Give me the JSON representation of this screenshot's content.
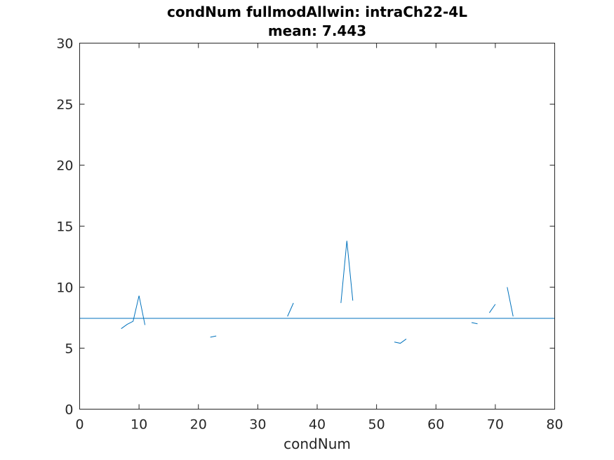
{
  "chart_data": {
    "type": "line",
    "title": "condNum fullmodAllwin: intraCh22-4L",
    "subtitle": "mean: 7.443",
    "xlabel": "condNum",
    "ylabel": "",
    "xlim": [
      0,
      80
    ],
    "ylim": [
      0,
      30
    ],
    "xticks": [
      0,
      10,
      20,
      30,
      40,
      50,
      60,
      70,
      80
    ],
    "yticks": [
      0,
      5,
      10,
      15,
      20,
      25,
      30
    ],
    "grid": false,
    "series_color": "#0072BD",
    "limit_line_color": "#A2142F",
    "mean_value": 7.443,
    "limit_value": 30,
    "segments": [
      {
        "x": [
          7,
          8,
          9,
          10,
          11
        ],
        "y": [
          6.6,
          6.95,
          7.2,
          9.3,
          6.9
        ]
      },
      {
        "x": [
          22,
          23
        ],
        "y": [
          5.9,
          6.0
        ]
      },
      {
        "x": [
          35,
          36
        ],
        "y": [
          7.6,
          8.7
        ]
      },
      {
        "x": [
          44,
          45,
          46
        ],
        "y": [
          8.7,
          13.8,
          8.9
        ]
      },
      {
        "x": [
          53,
          54,
          55
        ],
        "y": [
          5.5,
          5.4,
          5.75
        ]
      },
      {
        "x": [
          66,
          67
        ],
        "y": [
          7.1,
          7.0
        ]
      },
      {
        "x": [
          69,
          70
        ],
        "y": [
          7.9,
          8.6
        ]
      },
      {
        "x": [
          72,
          73
        ],
        "y": [
          10.0,
          7.6
        ]
      }
    ]
  }
}
